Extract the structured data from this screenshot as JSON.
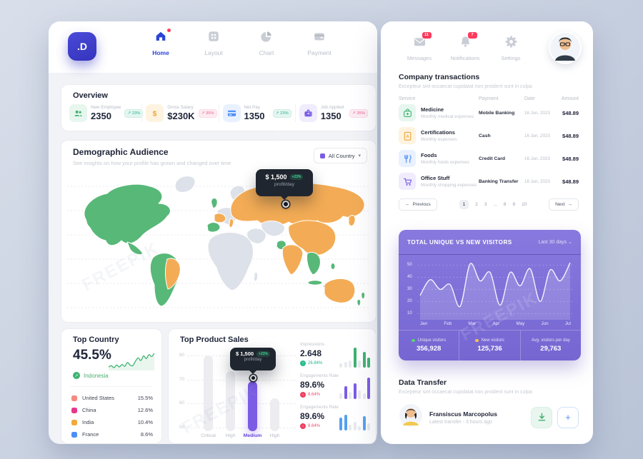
{
  "watermark": "FREEPIK",
  "nav": {
    "logo_text": ".D",
    "items": [
      {
        "label": "Home",
        "active": true
      },
      {
        "label": "Layout",
        "active": false
      },
      {
        "label": "Chart",
        "active": false
      },
      {
        "label": "Payment",
        "active": false
      }
    ]
  },
  "header_right": {
    "messages_label": "Messages",
    "messages_badge": "11",
    "notifications_label": "Notifications",
    "notifications_badge": "7",
    "settings_label": "Settings"
  },
  "overview": {
    "title": "Overview",
    "stats": [
      {
        "label": "New Employee",
        "value": "2350",
        "delta": "↗ 23%",
        "tone": "teal"
      },
      {
        "label": "Gross Salary",
        "value": "$230K",
        "delta": "↗ 35%",
        "tone": "pink"
      },
      {
        "label": "Net Pay",
        "value": "1350",
        "delta": "↗ 23%",
        "tone": "teal"
      },
      {
        "label": "Job Applied",
        "value": "1350",
        "delta": "↗ 35%",
        "tone": "pink"
      }
    ]
  },
  "demographic": {
    "title": "Demographic Audience",
    "subtitle": "See insights on how your profile has grown and changed over time",
    "filter_label": "All Country",
    "tooltip": {
      "value": "$ 1,500",
      "delta": "+23%",
      "caption": "profit/day"
    },
    "map_colors": {
      "green": "#57b878",
      "orange": "#f3ac55",
      "base": "#dde1e9"
    }
  },
  "top_country": {
    "title": "Top Country",
    "share": "45.5%",
    "leader": "Indonesia",
    "spark": [
      31,
      33,
      30,
      34,
      31,
      35,
      32,
      38,
      34,
      33,
      40,
      45,
      41,
      48,
      44,
      50,
      47,
      52
    ],
    "items": [
      {
        "name": "United States",
        "pct": "15.5%",
        "color": "#f58a80"
      },
      {
        "name": "China",
        "pct": "12.6%",
        "color": "#e8388a"
      },
      {
        "name": "India",
        "pct": "10.4%",
        "color": "#f2a93b"
      },
      {
        "name": "France",
        "pct": "8.6%",
        "color": "#4d8df7"
      }
    ]
  },
  "product_sales": {
    "title": "Top Product Sales",
    "chart": {
      "type": "bar",
      "categories": [
        "Critical",
        "High",
        "Medium",
        "High"
      ],
      "values": [
        80,
        73.5,
        69,
        62
      ],
      "yticks": [
        80,
        70,
        60,
        50
      ],
      "ylim": [
        50,
        80
      ],
      "highlight_index": 2,
      "highlight_color": "#7b5ce5",
      "bar_color": "#ececf1"
    },
    "tooltip": {
      "value": "$ 1,500",
      "delta": "+23%",
      "caption": "profit/day"
    },
    "metrics": [
      {
        "label": "Impressions",
        "value": "2.648",
        "delta": "26.84%",
        "direction": "up",
        "color": "#3db371",
        "bars": [
          6,
          8,
          10,
          28,
          10,
          22,
          14
        ],
        "accent_idx": [
          3,
          5,
          6
        ]
      },
      {
        "label": "Engagements Rate",
        "value": "89.6%",
        "delta": "8.64%",
        "direction": "down",
        "color": "#7b5ce5",
        "bars": [
          8,
          18,
          10,
          22,
          12,
          8,
          30
        ],
        "accent_idx": [
          1,
          3,
          6
        ]
      },
      {
        "label": "Engagements Rate",
        "value": "89.6%",
        "delta": "8.64%",
        "direction": "down",
        "color": "#56a0f0",
        "bars": [
          18,
          22,
          8,
          12,
          6,
          20,
          10
        ],
        "accent_idx": [
          0,
          1,
          5
        ]
      }
    ]
  },
  "transactions": {
    "title": "Company transactions",
    "subtitle": "Excepteur sint occaecat cupidatat non proident sunt in culpa",
    "columns": [
      "Service",
      "Payment",
      "Date",
      "Amount"
    ],
    "rows": [
      {
        "service": "Medicine",
        "desc": "Monthly medical expenses",
        "payment": "Mobile Banking",
        "date": "16 Jun, 2023",
        "amount": "$48.89"
      },
      {
        "service": "Certifications",
        "desc": "Monthly expenses",
        "payment": "Cash",
        "date": "16 Jun, 2023",
        "amount": "$48.89"
      },
      {
        "service": "Foods",
        "desc": "Monthly foods expenses",
        "payment": "Credit Card",
        "date": "16 Jun, 2023",
        "amount": "$48.89"
      },
      {
        "service": "Office Stuff",
        "desc": "Monthly shopping expenses",
        "payment": "Banking Transfer",
        "date": "16 Jun, 2023",
        "amount": "$48.89"
      }
    ],
    "pagination": {
      "previous": "Previous",
      "next": "Next",
      "pages": [
        "1",
        "2",
        "3",
        "...",
        "8",
        "9",
        "10"
      ],
      "active": "1"
    }
  },
  "visitors": {
    "title": "TOTAL UNIQUE VS NEW VISITORS",
    "range_label": "Last 30 days",
    "chart": {
      "type": "area",
      "months": [
        "Jan",
        "Feb",
        "Mar",
        "Apr",
        "May",
        "Jun",
        "Jul"
      ],
      "yticks": [
        50,
        40,
        30,
        20,
        10
      ],
      "values": [
        25,
        38,
        30,
        34,
        16,
        51,
        37,
        44,
        17,
        44,
        33,
        47,
        20,
        46,
        37,
        52
      ]
    },
    "stats": [
      {
        "label": "Unique visitors",
        "value": "356,928",
        "dot": "#5bd078"
      },
      {
        "label": "New visitors",
        "value": "125,736",
        "dot": "#f5c04e"
      },
      {
        "label": "Avg. visitors per day",
        "value": "29,763",
        "dot": ""
      }
    ]
  },
  "data_transfer": {
    "title": "Data Transfer",
    "subtitle": "Excepteur sint occaecat cupidatat non proident sunt in culpa",
    "name": "Fransiscus Marcopolus",
    "meta": "Latest transfer - 3 hours ago"
  }
}
